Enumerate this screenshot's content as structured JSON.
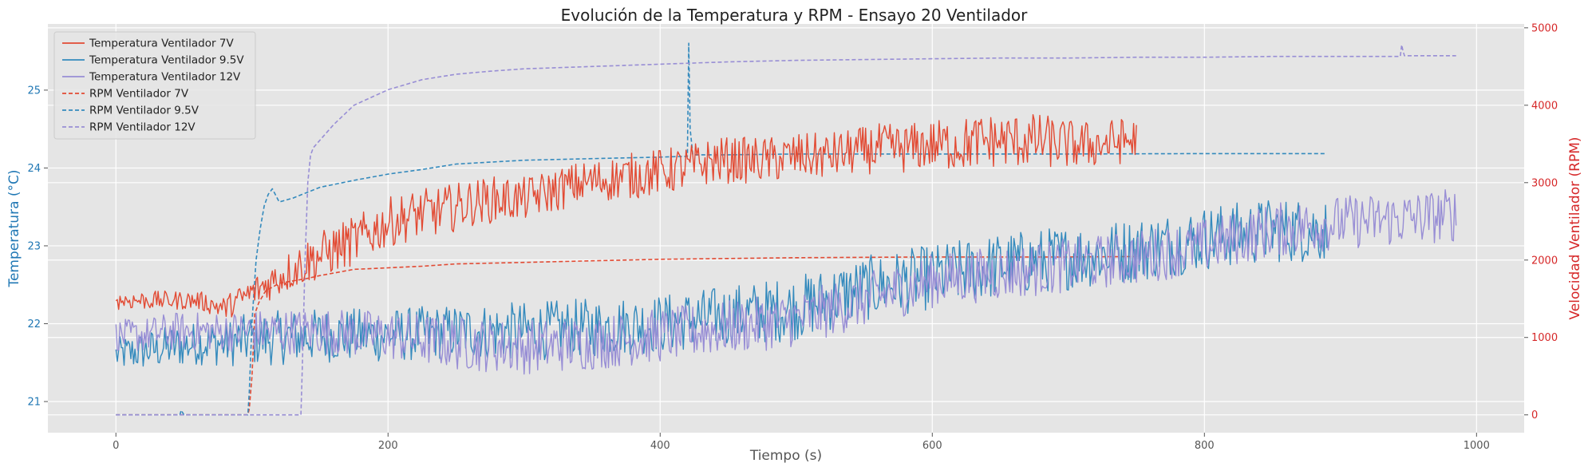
{
  "chart_data": {
    "type": "line",
    "title": "Evolución de la Temperatura y RPM - Ensayo 20 Ventilador",
    "xlabel": "Tiempo (s)",
    "ylabel": "Temperatura (°C)",
    "y2label": "Velocidad Ventilador (RPM)",
    "xlim": [
      -50,
      1035
    ],
    "ylim": [
      20.6,
      25.85
    ],
    "y2lim": [
      -230,
      5050
    ],
    "xticks": [
      0,
      200,
      400,
      600,
      800,
      1000
    ],
    "yticks": [
      21,
      22,
      23,
      24,
      25
    ],
    "y2ticks": [
      0,
      1000,
      2000,
      3000,
      4000,
      5000
    ],
    "grid": true,
    "legend_position": "top-left",
    "colors": {
      "background": "#e5e5e5",
      "grid": "#ffffff",
      "left_axis": "#1f77b4",
      "right_axis": "#d62728",
      "tick_text": "#555555"
    },
    "series": [
      {
        "name": "Temperatura Ventilador 7V",
        "axis": "left",
        "style": "solid",
        "color": "#e24a33",
        "x": [
          0,
          20,
          40,
          60,
          80,
          100,
          120,
          140,
          160,
          180,
          200,
          220,
          240,
          260,
          280,
          300,
          320,
          340,
          360,
          380,
          400,
          420,
          440,
          460,
          480,
          500,
          520,
          540,
          560,
          580,
          600,
          620,
          640,
          660,
          680,
          700,
          720,
          740,
          750
        ],
        "y": [
          22.3,
          22.3,
          22.3,
          22.3,
          22.2,
          22.4,
          22.6,
          22.8,
          22.95,
          23.1,
          23.3,
          23.4,
          23.45,
          23.55,
          23.6,
          23.6,
          23.7,
          23.8,
          23.85,
          23.9,
          23.95,
          24.0,
          24.1,
          24.1,
          24.1,
          24.15,
          24.15,
          24.2,
          24.25,
          24.25,
          24.3,
          24.3,
          24.35,
          24.35,
          24.35,
          24.3,
          24.3,
          24.35,
          24.35
        ],
        "noise": [
          0.12,
          0.12,
          0.12,
          0.12,
          0.15,
          0.2,
          0.25,
          0.3,
          0.32,
          0.32,
          0.32,
          0.32,
          0.32,
          0.3,
          0.3,
          0.28,
          0.28,
          0.28,
          0.28,
          0.3,
          0.3,
          0.3,
          0.3,
          0.3,
          0.3,
          0.3,
          0.3,
          0.3,
          0.32,
          0.32,
          0.32,
          0.35,
          0.35,
          0.35,
          0.35,
          0.32,
          0.3,
          0.3,
          0.3
        ]
      },
      {
        "name": "Temperatura Ventilador 9.5V",
        "axis": "left",
        "style": "solid",
        "color": "#348abd",
        "x": [
          0,
          20,
          40,
          60,
          80,
          100,
          150,
          200,
          250,
          300,
          350,
          400,
          450,
          500,
          550,
          600,
          650,
          700,
          750,
          800,
          850,
          890
        ],
        "y": [
          21.6,
          21.65,
          21.7,
          21.75,
          21.75,
          21.8,
          21.85,
          21.85,
          21.9,
          21.9,
          21.95,
          22.0,
          22.1,
          22.2,
          22.45,
          22.6,
          22.75,
          22.85,
          22.95,
          23.1,
          23.2,
          23.2
        ],
        "noise": [
          0.22,
          0.25,
          0.28,
          0.28,
          0.3,
          0.35,
          0.35,
          0.35,
          0.35,
          0.38,
          0.38,
          0.38,
          0.4,
          0.42,
          0.42,
          0.42,
          0.42,
          0.42,
          0.42,
          0.42,
          0.42,
          0.42
        ]
      },
      {
        "name": "Temperatura Ventilador 12V",
        "axis": "left",
        "style": "solid",
        "color": "#988ed5",
        "x": [
          0,
          20,
          40,
          60,
          80,
          100,
          150,
          200,
          250,
          300,
          350,
          400,
          450,
          500,
          550,
          600,
          650,
          700,
          750,
          800,
          850,
          900,
          950,
          985
        ],
        "y": [
          21.85,
          21.85,
          21.9,
          21.9,
          21.9,
          21.9,
          21.9,
          21.85,
          21.75,
          21.7,
          21.75,
          21.85,
          21.95,
          22.05,
          22.3,
          22.55,
          22.65,
          22.75,
          22.85,
          23.0,
          23.2,
          23.3,
          23.35,
          23.4
        ],
        "noise": [
          0.2,
          0.22,
          0.25,
          0.25,
          0.25,
          0.28,
          0.3,
          0.32,
          0.35,
          0.35,
          0.35,
          0.35,
          0.35,
          0.35,
          0.35,
          0.35,
          0.35,
          0.35,
          0.35,
          0.35,
          0.35,
          0.35,
          0.35,
          0.35
        ]
      },
      {
        "name": "RPM Ventilador 7V",
        "axis": "right",
        "style": "dashed",
        "color": "#e24a33",
        "x": [
          0,
          97,
          98,
          100,
          102,
          105,
          110,
          115,
          120,
          130,
          140,
          150,
          175,
          200,
          225,
          250,
          300,
          350,
          400,
          450,
          500,
          600,
          700,
          750
        ],
        "y": [
          0,
          0,
          80,
          500,
          1300,
          1450,
          1600,
          1650,
          1700,
          1730,
          1760,
          1800,
          1880,
          1900,
          1920,
          1950,
          1970,
          1990,
          2010,
          2020,
          2030,
          2040,
          2040,
          2045
        ]
      },
      {
        "name": "RPM Ventilador 9.5V",
        "axis": "right",
        "style": "dashed",
        "color": "#348abd",
        "x": [
          0,
          47,
          48,
          50,
          97,
          98,
          100,
          103,
          106,
          109,
          112,
          115,
          120,
          130,
          140,
          150,
          175,
          200,
          225,
          250,
          300,
          350,
          400,
          420,
          421,
          422,
          424,
          425,
          450,
          500,
          600,
          700,
          800,
          890
        ],
        "y": [
          0,
          0,
          60,
          0,
          0,
          300,
          1200,
          2000,
          2400,
          2700,
          2850,
          2920,
          2750,
          2800,
          2870,
          2940,
          3030,
          3110,
          3170,
          3240,
          3290,
          3310,
          3330,
          3340,
          4800,
          3700,
          3360,
          3360,
          3360,
          3370,
          3370,
          3370,
          3375,
          3375
        ]
      },
      {
        "name": "RPM Ventilador 12V",
        "axis": "right",
        "style": "dashed",
        "color": "#988ed5",
        "x": [
          0,
          136,
          137,
          139,
          141,
          143,
          145,
          150,
          160,
          175,
          200,
          225,
          250,
          275,
          300,
          350,
          400,
          450,
          500,
          550,
          600,
          650,
          700,
          750,
          800,
          850,
          900,
          944,
          945,
          946,
          947,
          950,
          985
        ],
        "y": [
          0,
          0,
          600,
          2000,
          3000,
          3350,
          3450,
          3550,
          3750,
          4000,
          4200,
          4330,
          4400,
          4440,
          4470,
          4500,
          4530,
          4560,
          4580,
          4590,
          4600,
          4610,
          4610,
          4620,
          4620,
          4630,
          4630,
          4630,
          4780,
          4700,
          4640,
          4640,
          4640
        ]
      }
    ]
  }
}
